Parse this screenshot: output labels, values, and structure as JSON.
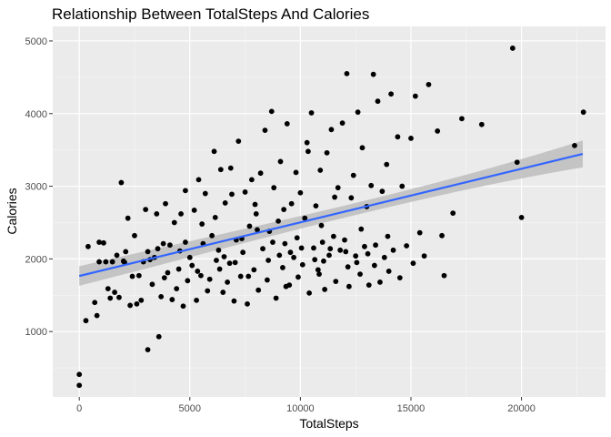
{
  "chart_data": {
    "type": "scatter",
    "title": "Relationship Between TotalSteps And Calories",
    "xlabel": "TotalSteps",
    "ylabel": "Calories",
    "xlim": [
      -1200,
      23800
    ],
    "ylim": [
      100,
      5200
    ],
    "xticks": [
      0,
      5000,
      10000,
      15000,
      20000
    ],
    "yticks": [
      1000,
      2000,
      3000,
      4000,
      5000
    ],
    "grid": true,
    "panel_color": "#ebebeb",
    "point_color": "#000000",
    "trend_color": "#3366ff",
    "band_color": "#bdbdbd",
    "trend": {
      "method": "linear",
      "x": [
        0,
        22770
      ],
      "y": [
        1765,
        3445
      ],
      "ci_lower": [
        1630,
        3230
      ],
      "ci_upper": [
        1900,
        3680
      ]
    },
    "points": [
      [
        0,
        410
      ],
      [
        0,
        260
      ],
      [
        300,
        1150
      ],
      [
        400,
        2170
      ],
      [
        700,
        1400
      ],
      [
        800,
        1220
      ],
      [
        900,
        2230
      ],
      [
        900,
        1960
      ],
      [
        1100,
        2220
      ],
      [
        1200,
        1960
      ],
      [
        1300,
        1590
      ],
      [
        1400,
        1460
      ],
      [
        1500,
        1960
      ],
      [
        1600,
        1540
      ],
      [
        1700,
        2050
      ],
      [
        1800,
        1470
      ],
      [
        1900,
        3050
      ],
      [
        2000,
        1970
      ],
      [
        2100,
        2100
      ],
      [
        2200,
        2560
      ],
      [
        2300,
        1360
      ],
      [
        2400,
        1760
      ],
      [
        2500,
        2320
      ],
      [
        2600,
        1380
      ],
      [
        2700,
        1770
      ],
      [
        2800,
        1430
      ],
      [
        2900,
        1960
      ],
      [
        3000,
        2680
      ],
      [
        3100,
        2100
      ],
      [
        3100,
        750
      ],
      [
        3200,
        1990
      ],
      [
        3300,
        1650
      ],
      [
        3400,
        2020
      ],
      [
        3500,
        2620
      ],
      [
        3600,
        930
      ],
      [
        3700,
        1480
      ],
      [
        3800,
        2210
      ],
      [
        3900,
        2760
      ],
      [
        4000,
        1810
      ],
      [
        4100,
        2190
      ],
      [
        4200,
        1440
      ],
      [
        4300,
        2500
      ],
      [
        4400,
        1590
      ],
      [
        4500,
        1860
      ],
      [
        4600,
        2620
      ],
      [
        4700,
        1350
      ],
      [
        4800,
        2230
      ],
      [
        4900,
        1700
      ],
      [
        5000,
        2020
      ],
      [
        5100,
        1910
      ],
      [
        5200,
        2670
      ],
      [
        5300,
        1430
      ],
      [
        5400,
        3090
      ],
      [
        5500,
        1770
      ],
      [
        5600,
        2210
      ],
      [
        5700,
        2900
      ],
      [
        5800,
        1560
      ],
      [
        5900,
        1720
      ],
      [
        6000,
        2320
      ],
      [
        6100,
        3480
      ],
      [
        6200,
        1980
      ],
      [
        6300,
        2120
      ],
      [
        6400,
        3230
      ],
      [
        6500,
        1540
      ],
      [
        6600,
        2770
      ],
      [
        6700,
        1680
      ],
      [
        6800,
        1940
      ],
      [
        6900,
        2890
      ],
      [
        7000,
        1420
      ],
      [
        7100,
        2260
      ],
      [
        7200,
        3620
      ],
      [
        7300,
        1760
      ],
      [
        7400,
        2090
      ],
      [
        7500,
        2920
      ],
      [
        7600,
        1380
      ],
      [
        7700,
        2450
      ],
      [
        7800,
        3090
      ],
      [
        7900,
        1850
      ],
      [
        8000,
        2620
      ],
      [
        8100,
        1570
      ],
      [
        8200,
        3180
      ],
      [
        8300,
        2140
      ],
      [
        8400,
        3770
      ],
      [
        8500,
        1710
      ],
      [
        8600,
        2380
      ],
      [
        8700,
        4030
      ],
      [
        8800,
        2980
      ],
      [
        8900,
        1460
      ],
      [
        9000,
        2520
      ],
      [
        9100,
        3340
      ],
      [
        9200,
        1880
      ],
      [
        9300,
        2210
      ],
      [
        9400,
        3860
      ],
      [
        9500,
        1640
      ],
      [
        9600,
        2760
      ],
      [
        9700,
        2020
      ],
      [
        9800,
        3190
      ],
      [
        9900,
        1750
      ],
      [
        10000,
        2910
      ],
      [
        10100,
        1920
      ],
      [
        10200,
        2560
      ],
      [
        10300,
        3600
      ],
      [
        10400,
        1530
      ],
      [
        10500,
        4010
      ],
      [
        10600,
        2150
      ],
      [
        10700,
        2730
      ],
      [
        10800,
        1850
      ],
      [
        10900,
        3220
      ],
      [
        11000,
        2230
      ],
      [
        11100,
        1580
      ],
      [
        11200,
        3460
      ],
      [
        11300,
        2050
      ],
      [
        11400,
        3780
      ],
      [
        11500,
        2310
      ],
      [
        11600,
        1690
      ],
      [
        11700,
        2980
      ],
      [
        11800,
        2120
      ],
      [
        11900,
        3870
      ],
      [
        12000,
        2260
      ],
      [
        12100,
        4550
      ],
      [
        12200,
        1620
      ],
      [
        12300,
        2840
      ],
      [
        12400,
        3150
      ],
      [
        12500,
        2040
      ],
      [
        12600,
        4020
      ],
      [
        12700,
        1790
      ],
      [
        12800,
        3530
      ],
      [
        12900,
        2170
      ],
      [
        13000,
        2720
      ],
      [
        13100,
        1640
      ],
      [
        13200,
        3010
      ],
      [
        13300,
        4540
      ],
      [
        13400,
        2190
      ],
      [
        13500,
        4170
      ],
      [
        13600,
        1680
      ],
      [
        13700,
        2930
      ],
      [
        13800,
        2020
      ],
      [
        13900,
        3300
      ],
      [
        14000,
        1830
      ],
      [
        14100,
        4270
      ],
      [
        14200,
        2120
      ],
      [
        14400,
        3680
      ],
      [
        14500,
        1740
      ],
      [
        14600,
        3000
      ],
      [
        14800,
        2180
      ],
      [
        15000,
        3660
      ],
      [
        15100,
        1940
      ],
      [
        15200,
        4240
      ],
      [
        15400,
        2360
      ],
      [
        15600,
        2040
      ],
      [
        15800,
        4400
      ],
      [
        16200,
        3760
      ],
      [
        16400,
        2320
      ],
      [
        16500,
        1770
      ],
      [
        16900,
        2630
      ],
      [
        17300,
        3930
      ],
      [
        18200,
        3850
      ],
      [
        19600,
        4900
      ],
      [
        19800,
        3330
      ],
      [
        20000,
        2570
      ],
      [
        22400,
        3560
      ],
      [
        22800,
        4020
      ],
      [
        2050,
        1950
      ],
      [
        3550,
        2140
      ],
      [
        4800,
        2940
      ],
      [
        5350,
        1830
      ],
      [
        6150,
        2570
      ],
      [
        6850,
        3250
      ],
      [
        7350,
        2280
      ],
      [
        7950,
        2750
      ],
      [
        8550,
        1980
      ],
      [
        9250,
        2680
      ],
      [
        9850,
        2290
      ],
      [
        10350,
        3480
      ],
      [
        10950,
        2460
      ],
      [
        11550,
        2850
      ],
      [
        12150,
        1890
      ],
      [
        12750,
        2410
      ],
      [
        13350,
        1910
      ],
      [
        13950,
        2310
      ],
      [
        7050,
        1950
      ],
      [
        8050,
        2400
      ],
      [
        9050,
        2050
      ],
      [
        10050,
        2150
      ],
      [
        11050,
        1970
      ],
      [
        12050,
        2100
      ],
      [
        6550,
        2030
      ],
      [
        5550,
        2480
      ],
      [
        4550,
        2110
      ],
      [
        3850,
        1740
      ],
      [
        9550,
        2090
      ],
      [
        10650,
        1990
      ],
      [
        11350,
        2140
      ],
      [
        8750,
        2230
      ],
      [
        7650,
        1760
      ],
      [
        6350,
        1860
      ],
      [
        12550,
        1950
      ],
      [
        13050,
        2070
      ],
      [
        10850,
        1790
      ],
      [
        9350,
        1620
      ]
    ]
  }
}
